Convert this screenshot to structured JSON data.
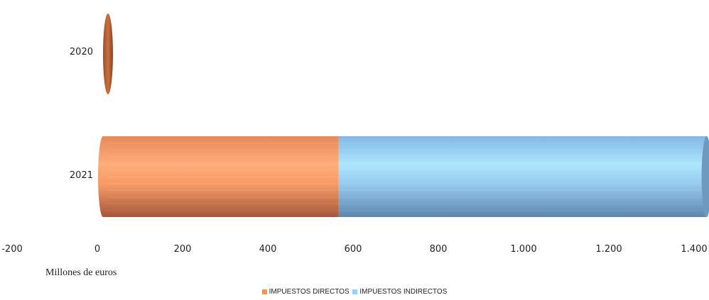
{
  "chart_data": {
    "type": "bar",
    "orientation": "horizontal",
    "stacked": true,
    "style": "3d-cylinder",
    "categories": [
      "2020",
      "2021"
    ],
    "series": [
      {
        "name": "IMPUESTOS DIRECTOS",
        "values": [
          -1,
          553
        ],
        "color": "#f79646"
      },
      {
        "name": "IMPUESTOS INDIRECTOS",
        "values": [
          0,
          863
        ],
        "color": "#9bd3f7"
      }
    ],
    "xlabel": "Millones de euros",
    "xlim": [
      -200,
      1400
    ],
    "xticks": [
      "-200",
      "0",
      "200",
      "400",
      "600",
      "800",
      "1.000",
      "1.200",
      "1.400"
    ],
    "grid": false,
    "legend": "bottom"
  }
}
